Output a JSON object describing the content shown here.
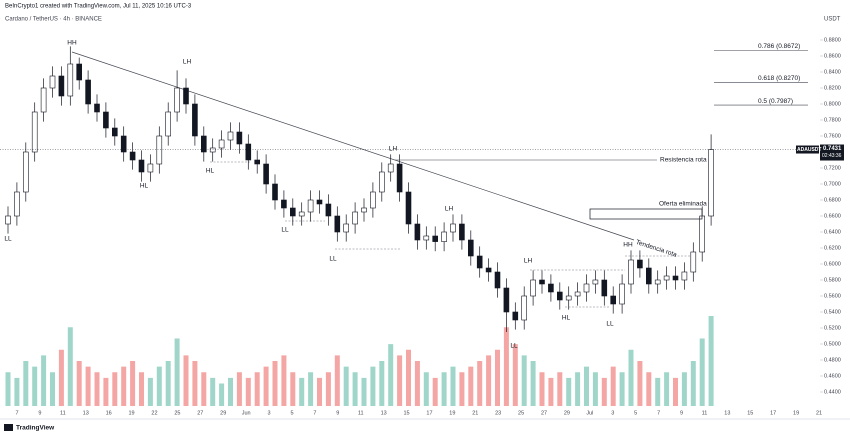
{
  "chart_data": {
    "type": "candlestick",
    "credit": "BeInCrypto1 created with TradingView.com, Jul 11, 2025 10:16 UTC-3",
    "title": "Cardano / TetherUS · 4h · BINANCE",
    "currency": "USDT",
    "symbol_tag": "ADAUSDT",
    "last_price": 0.7431,
    "countdown": "02:43:36",
    "up_color": "#ffffff",
    "down_color": "#131722",
    "volume_up_color": "#9fd6c9",
    "volume_down_color": "#f4a6a4",
    "open": [
      0.65,
      0.66,
      0.69,
      0.74,
      0.79,
      0.82,
      0.835,
      0.81,
      0.85,
      0.83,
      0.8,
      0.79,
      0.77,
      0.76,
      0.74,
      0.73,
      0.715,
      0.725,
      0.76,
      0.79,
      0.82,
      0.8,
      0.76,
      0.74,
      0.745,
      0.755,
      0.765,
      0.75,
      0.73,
      0.725,
      0.7,
      0.68,
      0.67,
      0.66,
      0.665,
      0.68,
      0.675,
      0.66,
      0.64,
      0.65,
      0.665,
      0.67,
      0.69,
      0.715,
      0.725,
      0.69,
      0.65,
      0.63,
      0.635,
      0.628,
      0.64,
      0.65,
      0.63,
      0.61,
      0.595,
      0.59,
      0.57,
      0.54,
      0.53,
      0.56,
      0.58,
      0.575,
      0.565,
      0.555,
      0.56,
      0.565,
      0.575,
      0.58,
      0.56,
      0.55,
      0.575,
      0.605,
      0.595,
      0.575,
      0.58,
      0.585,
      0.58,
      0.59,
      0.615,
      0.66
    ],
    "high": [
      0.672,
      0.702,
      0.752,
      0.802,
      0.832,
      0.847,
      0.847,
      0.872,
      0.858,
      0.842,
      0.812,
      0.802,
      0.782,
      0.772,
      0.752,
      0.742,
      0.737,
      0.772,
      0.802,
      0.842,
      0.832,
      0.812,
      0.772,
      0.757,
      0.767,
      0.777,
      0.777,
      0.762,
      0.742,
      0.737,
      0.712,
      0.692,
      0.682,
      0.677,
      0.692,
      0.692,
      0.687,
      0.672,
      0.662,
      0.677,
      0.682,
      0.702,
      0.727,
      0.737,
      0.737,
      0.702,
      0.662,
      0.647,
      0.647,
      0.652,
      0.662,
      0.662,
      0.642,
      0.622,
      0.607,
      0.602,
      0.582,
      0.552,
      0.572,
      0.592,
      0.592,
      0.587,
      0.577,
      0.572,
      0.577,
      0.587,
      0.592,
      0.592,
      0.572,
      0.587,
      0.617,
      0.617,
      0.607,
      0.592,
      0.597,
      0.597,
      0.602,
      0.627,
      0.672,
      0.762
    ],
    "low": [
      0.638,
      0.648,
      0.678,
      0.728,
      0.778,
      0.808,
      0.798,
      0.798,
      0.818,
      0.788,
      0.778,
      0.758,
      0.748,
      0.728,
      0.718,
      0.703,
      0.703,
      0.713,
      0.748,
      0.778,
      0.788,
      0.748,
      0.728,
      0.728,
      0.733,
      0.743,
      0.738,
      0.718,
      0.713,
      0.688,
      0.668,
      0.658,
      0.648,
      0.648,
      0.653,
      0.663,
      0.648,
      0.628,
      0.628,
      0.638,
      0.653,
      0.658,
      0.678,
      0.703,
      0.678,
      0.638,
      0.618,
      0.618,
      0.616,
      0.616,
      0.628,
      0.618,
      0.598,
      0.583,
      0.578,
      0.558,
      0.515,
      0.518,
      0.518,
      0.548,
      0.563,
      0.553,
      0.543,
      0.543,
      0.548,
      0.553,
      0.563,
      0.548,
      0.538,
      0.538,
      0.563,
      0.583,
      0.563,
      0.563,
      0.568,
      0.568,
      0.568,
      0.578,
      0.603,
      0.648
    ],
    "close": [
      0.66,
      0.69,
      0.74,
      0.79,
      0.82,
      0.835,
      0.81,
      0.85,
      0.83,
      0.8,
      0.79,
      0.77,
      0.76,
      0.74,
      0.73,
      0.715,
      0.725,
      0.76,
      0.79,
      0.82,
      0.8,
      0.76,
      0.74,
      0.745,
      0.755,
      0.765,
      0.75,
      0.73,
      0.725,
      0.7,
      0.68,
      0.67,
      0.66,
      0.665,
      0.68,
      0.675,
      0.66,
      0.64,
      0.65,
      0.665,
      0.67,
      0.69,
      0.715,
      0.725,
      0.69,
      0.65,
      0.63,
      0.635,
      0.628,
      0.64,
      0.65,
      0.63,
      0.61,
      0.595,
      0.59,
      0.57,
      0.54,
      0.53,
      0.56,
      0.58,
      0.575,
      0.565,
      0.555,
      0.56,
      0.565,
      0.575,
      0.58,
      0.56,
      0.55,
      0.575,
      0.605,
      0.595,
      0.575,
      0.58,
      0.585,
      0.58,
      0.59,
      0.615,
      0.66,
      0.743
    ],
    "volume": [
      30,
      25,
      40,
      35,
      45,
      30,
      50,
      70,
      40,
      35,
      30,
      25,
      30,
      35,
      40,
      30,
      25,
      35,
      40,
      60,
      45,
      40,
      30,
      25,
      20,
      25,
      30,
      25,
      30,
      35,
      40,
      45,
      30,
      25,
      30,
      25,
      30,
      45,
      35,
      30,
      25,
      35,
      40,
      55,
      45,
      50,
      40,
      30,
      25,
      30,
      35,
      30,
      35,
      40,
      45,
      50,
      70,
      55,
      45,
      40,
      30,
      25,
      30,
      25,
      30,
      35,
      30,
      25,
      35,
      30,
      50,
      40,
      30,
      25,
      30,
      25,
      30,
      40,
      60,
      80
    ],
    "ylim": [
      0.4225,
      0.8925
    ],
    "yticks": [
      {
        "value": 0.88,
        "label": "0.8800"
      },
      {
        "value": 0.86,
        "label": "0.8600"
      },
      {
        "value": 0.84,
        "label": "0.8400"
      },
      {
        "value": 0.82,
        "label": "0.8200"
      },
      {
        "value": 0.8,
        "label": "0.8000"
      },
      {
        "value": 0.78,
        "label": "0.7800"
      },
      {
        "value": 0.76,
        "label": "0.7600"
      },
      {
        "value": 0.72,
        "label": "0.7200"
      },
      {
        "value": 0.7,
        "label": "0.7000"
      },
      {
        "value": 0.68,
        "label": "0.6800"
      },
      {
        "value": 0.66,
        "label": "0.6600"
      },
      {
        "value": 0.64,
        "label": "0.6400"
      },
      {
        "value": 0.62,
        "label": "0.6200"
      },
      {
        "value": 0.6,
        "label": "0.6000"
      },
      {
        "value": 0.58,
        "label": "0.5800"
      },
      {
        "value": 0.56,
        "label": "0.5600"
      },
      {
        "value": 0.54,
        "label": "0.5400"
      },
      {
        "value": 0.52,
        "label": "0.5200"
      },
      {
        "value": 0.5,
        "label": "0.5000"
      },
      {
        "value": 0.48,
        "label": "0.4800"
      },
      {
        "value": 0.46,
        "label": "0.4600"
      },
      {
        "value": 0.44,
        "label": "0.4400"
      }
    ],
    "xticks": [
      "7",
      "9",
      "11",
      "13",
      "16",
      "19",
      "22",
      "25",
      "27",
      "29",
      "Jun",
      "3",
      "5",
      "7",
      "9",
      "11",
      "13",
      "15",
      "17",
      "19",
      "21",
      "23",
      "25",
      "27",
      "29",
      "Jul",
      "3",
      "5",
      "7",
      "9",
      "11",
      "13",
      "15",
      "17",
      "19",
      "21"
    ],
    "fib_levels": [
      {
        "value": 0.8672,
        "label": "0.786 (0.8672)"
      },
      {
        "value": 0.827,
        "label": "0.618 (0.8270)"
      },
      {
        "value": 0.7987,
        "label": "0.5 (0.7987)"
      }
    ],
    "resistance": {
      "value": 0.73,
      "label": "Resistencia rota"
    },
    "supply_label": "Oferta eliminada",
    "trend_label": "Tendencia rota",
    "annotations": [
      "HH",
      "LH",
      "HL",
      "HL",
      "LL",
      "LL",
      "LL",
      "LH",
      "LH",
      "LH",
      "LL",
      "HL",
      "LL",
      "HH"
    ],
    "brand": "TradingView"
  }
}
